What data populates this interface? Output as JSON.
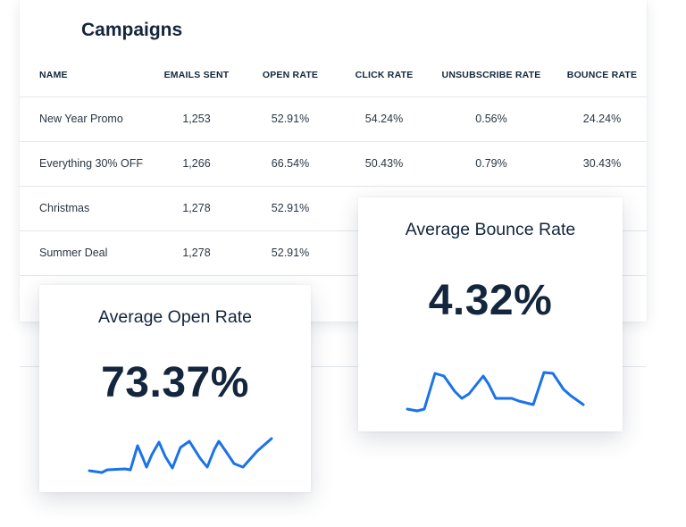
{
  "table": {
    "title": "Campaigns",
    "columns": [
      "NAME",
      "EMAILS SENT",
      "OPEN RATE",
      "CLICK RATE",
      "UNSUBSCRIBE RATE",
      "BOUNCE RATE"
    ],
    "rows": [
      {
        "name": "New Year Promo",
        "emails_sent": "1,253",
        "open_rate": "52.91%",
        "click_rate": "54.24%",
        "unsubscribe_rate": "0.56%",
        "bounce_rate": "24.24%"
      },
      {
        "name": "Everything 30% OFF",
        "emails_sent": "1,266",
        "open_rate": "66.54%",
        "click_rate": "50.43%",
        "unsubscribe_rate": "0.79%",
        "bounce_rate": "30.43%"
      },
      {
        "name": "Christmas",
        "emails_sent": "1,278",
        "open_rate": "52.91%"
      },
      {
        "name": "Summer Deal",
        "emails_sent": "1,278",
        "open_rate": "52.91%"
      }
    ]
  },
  "open_rate_card": {
    "title": "Average Open Rate",
    "value": "73.37%",
    "line_color": "#1a73e8"
  },
  "bounce_rate_card": {
    "title": "Average Bounce Rate",
    "value": "4.32%",
    "line_color": "#1a73e8"
  }
}
